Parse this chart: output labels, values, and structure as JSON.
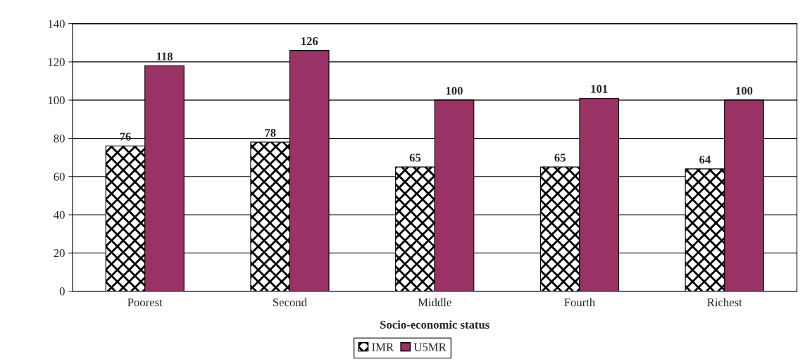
{
  "chart_data": {
    "type": "bar",
    "xlabel": "Socio-economic status",
    "categories": [
      "Poorest",
      "Second",
      "Middle",
      "Fourth",
      "Richest"
    ],
    "series": [
      {
        "name": "IMR",
        "color": "#000000",
        "values": [
          76,
          78,
          65,
          65,
          64
        ]
      },
      {
        "name": "U5MR",
        "color": "#993366",
        "values": [
          118,
          126,
          100,
          101,
          100
        ]
      }
    ],
    "ylim": [
      0,
      140
    ],
    "yticks": [
      0,
      20,
      40,
      60,
      80,
      100,
      120,
      140
    ],
    "grid": "y",
    "legend": "bottom",
    "data_labels": true
  }
}
